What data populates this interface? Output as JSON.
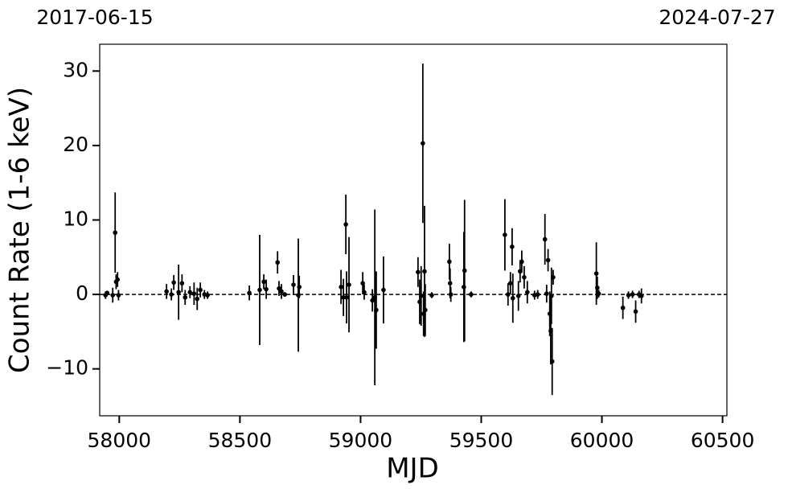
{
  "chart_data": {
    "type": "errorbar",
    "annotations": [
      "2017-06-15",
      "2024-07-27"
    ],
    "xlabel": "MJD",
    "ylabel": "Count Rate (1-6 keV)",
    "xlim": [
      57919,
      60518
    ],
    "ylim": [
      -16.3,
      33.6
    ],
    "xticks": [
      58000,
      58500,
      59000,
      59500,
      60000,
      60500
    ],
    "yticks": [
      {
        "value": -10,
        "label": "−10"
      },
      0,
      10,
      20,
      30
    ],
    "hline": 0,
    "color": "#000000",
    "x": [
      57943,
      57950,
      57973,
      57983,
      57987,
      57993,
      57997,
      58196,
      58216,
      58226,
      58246,
      58260,
      58273,
      58293,
      58310,
      58323,
      58336,
      58353,
      58366,
      58539,
      58582,
      58599,
      58609,
      58656,
      58662,
      58672,
      58686,
      58722,
      58742,
      58746,
      58919,
      58929,
      58939,
      58942,
      58952,
      59009,
      59015,
      59049,
      59059,
      59065,
      59095,
      59238,
      59245,
      59251,
      59258,
      59261,
      59265,
      59268,
      59295,
      59368,
      59371,
      59374,
      59428,
      59431,
      59458,
      59598,
      59611,
      59621,
      59628,
      59631,
      59654,
      59661,
      59668,
      59678,
      59691,
      59721,
      59734,
      59764,
      59771,
      59777,
      59784,
      59788,
      59791,
      59794,
      59798,
      59977,
      59981,
      59987,
      60087,
      60110,
      60127,
      60140,
      60154,
      60164
    ],
    "values": [
      -0.1,
      0.2,
      -0.1,
      8.3,
      1.7,
      2.0,
      -0.1,
      0.4,
      0,
      1.6,
      0.3,
      1.5,
      -0.4,
      0.3,
      0.1,
      -0.6,
      0.6,
      0,
      -0.1,
      0.2,
      0.6,
      1.7,
      0.7,
      4.3,
      0.8,
      0.4,
      0,
      1.3,
      -0.1,
      1.0,
      1.0,
      -0.4,
      9.4,
      -0.4,
      1.3,
      1.5,
      0.3,
      -0.8,
      -0.4,
      -2.1,
      0.6,
      3.0,
      -1.0,
      -0.2,
      20.3,
      -2.6,
      3.1,
      -2.1,
      -0.1,
      4.4,
      1.5,
      0,
      1.0,
      3.2,
      0,
      8.0,
      0,
      1.5,
      6.4,
      -0.5,
      -0.2,
      3.1,
      4.4,
      2.3,
      0.3,
      -0.1,
      0,
      7.4,
      0.1,
      4.6,
      -2.6,
      -4.9,
      -0.2,
      -9.0,
      2.3,
      2.8,
      0.9,
      0.1,
      -1.8,
      -0.1,
      0,
      -2.3,
      0,
      -0.2
    ],
    "errors": [
      0.5,
      0.3,
      1,
      5.4,
      1,
      1,
      0.7,
      1,
      0.8,
      1,
      3.7,
      1.2,
      1,
      0.8,
      1.5,
      1.5,
      1,
      0.6,
      0.5,
      1,
      7.4,
      1,
      1.3,
      1.5,
      1,
      1,
      0.3,
      1.3,
      7.6,
      1.5,
      2.3,
      2.5,
      4,
      3.5,
      6.4,
      1.5,
      1,
      1.5,
      11.8,
      5.2,
      4.5,
      2,
      3,
      4,
      10.7,
      3,
      8.8,
      3.5,
      0.4,
      2.4,
      2,
      1,
      7.4,
      9.5,
      0.4,
      4.8,
      1.5,
      1.5,
      2.5,
      3.3,
      2,
      1.5,
      1.5,
      1.5,
      1.5,
      0.6,
      0.6,
      3.4,
      1.2,
      1.5,
      3,
      4.5,
      3.8,
      4.5,
      1,
      4.2,
      1.5,
      0.5,
      1.5,
      0.5,
      0.5,
      1.5,
      0.5,
      1
    ]
  }
}
